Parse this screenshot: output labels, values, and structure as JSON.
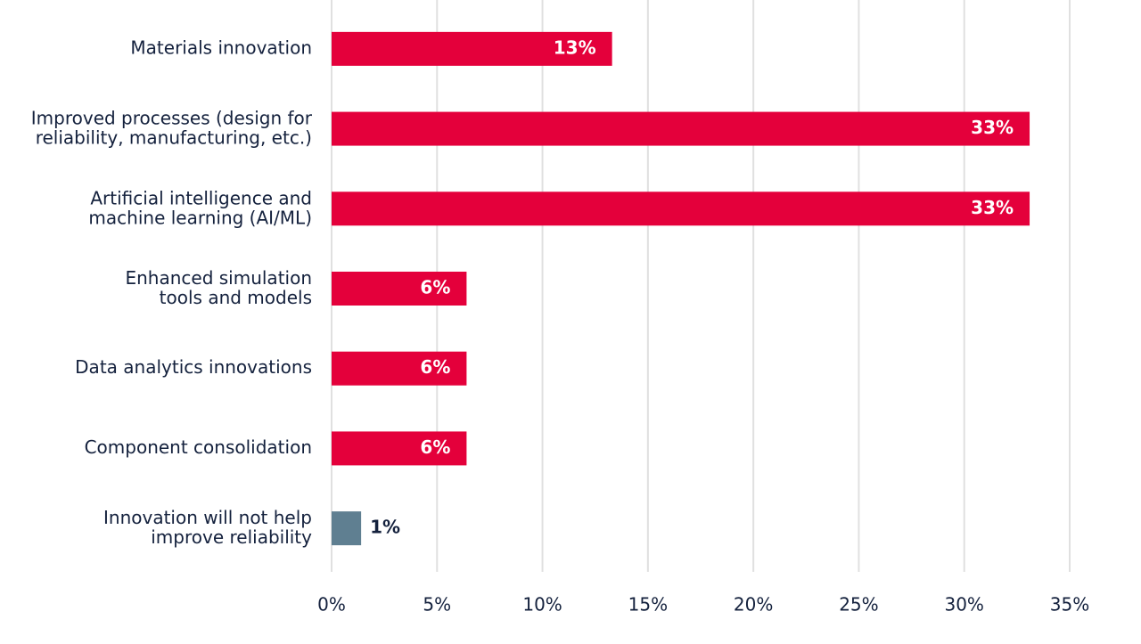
{
  "chart_data": {
    "type": "bar",
    "orientation": "horizontal",
    "categories": [
      "Materials innovation",
      "Improved processes (design for\nreliability, manufacturing, etc.)",
      "Artificial intelligence and\nmachine learning (AI/ML)",
      "Enhanced simulation\ntools and models",
      "Data analytics innovations",
      "Component consolidation",
      "Innovation will not help\nimprove reliability"
    ],
    "values": [
      13.3,
      33.1,
      33.1,
      6.4,
      6.4,
      6.4,
      1.4
    ],
    "value_labels": [
      "13%",
      "33%",
      "33%",
      "6%",
      "6%",
      "6%",
      "1%"
    ],
    "colors": [
      "#e4003b",
      "#e4003b",
      "#e4003b",
      "#e4003b",
      "#e4003b",
      "#e4003b",
      "#5f7f91"
    ],
    "xlim": [
      0,
      35
    ],
    "xticks": [
      {
        "value": 0,
        "label": "0%"
      },
      {
        "value": 5,
        "label": "5%"
      },
      {
        "value": 10,
        "label": "10%"
      },
      {
        "value": 15,
        "label": "15%"
      },
      {
        "value": 20,
        "label": "20%"
      },
      {
        "value": 25,
        "label": "25%"
      },
      {
        "value": 30,
        "label": "30%"
      },
      {
        "value": 35,
        "label": "35%"
      }
    ],
    "grid": true
  }
}
